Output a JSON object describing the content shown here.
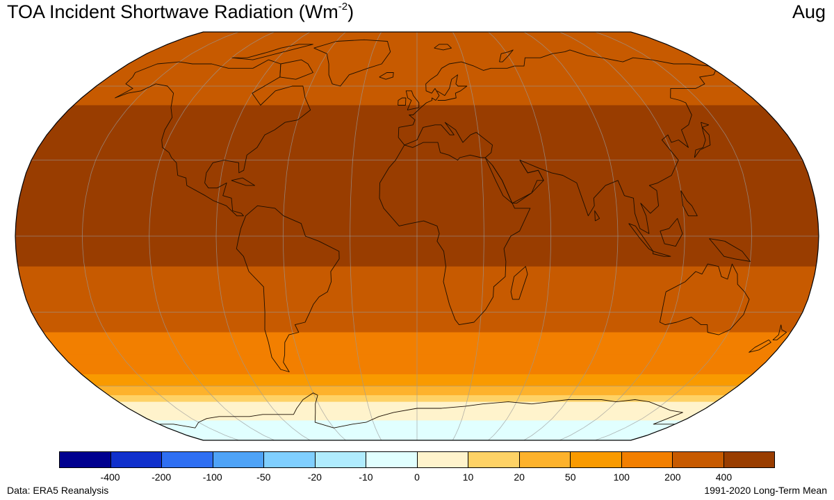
{
  "header": {
    "title_main": "TOA Incident Shortwave Radiation (Wm",
    "title_sup": "-2",
    "title_close": ")",
    "month": "Aug"
  },
  "map": {
    "projection": "Robinson",
    "variable": "TOA incident shortwave radiation",
    "bands": [
      {
        "lat_top": 90,
        "lat_bottom": 66,
        "color": "#c75a00",
        "range": "200-400"
      },
      {
        "lat_top": 66,
        "lat_bottom": 52,
        "color": "#c75a00",
        "range": "200-400"
      },
      {
        "lat_top": 52,
        "lat_bottom": 17,
        "color": "#993d00",
        "range": ">400"
      },
      {
        "lat_top": 17,
        "lat_bottom": -12,
        "color": "#993d00",
        "range": ">400"
      },
      {
        "lat_top": -12,
        "lat_bottom": -38,
        "color": "#c75a00",
        "range": "200-400"
      },
      {
        "lat_top": -38,
        "lat_bottom": -47,
        "color": "#f27f00",
        "range": "100-200"
      },
      {
        "lat_top": -47,
        "lat_bottom": -55,
        "color": "#f27f00",
        "range": "100-200"
      },
      {
        "lat_top": -55,
        "lat_bottom": -60,
        "color": "#f99a00",
        "range": "50-100"
      },
      {
        "lat_top": -60,
        "lat_bottom": -64,
        "color": "#fdb22c",
        "range": "20-50"
      },
      {
        "lat_top": -64,
        "lat_bottom": -67,
        "color": "#fed266",
        "range": "10-20"
      },
      {
        "lat_top": -67,
        "lat_bottom": -76,
        "color": "#fff3cc",
        "range": "0-10"
      },
      {
        "lat_top": -76,
        "lat_bottom": -90,
        "color": "#e1ffff",
        "range": "-10-0"
      }
    ]
  },
  "colorbar": {
    "colors": [
      "#00008f",
      "#1030cc",
      "#2f6ff2",
      "#4fa3f7",
      "#80cfff",
      "#b0ecfe",
      "#e1ffff",
      "#fff3cc",
      "#fed266",
      "#fdb22c",
      "#f99a00",
      "#f27f00",
      "#c75a00",
      "#993d00"
    ],
    "labels": [
      "-400",
      "-200",
      "-100",
      "-50",
      "-20",
      "-10",
      "0",
      "10",
      "20",
      "50",
      "100",
      "200",
      "400"
    ]
  },
  "footer": {
    "source": "Data: ERA5 Reanalysis",
    "period": "1991-2020 Long-Term Mean"
  }
}
